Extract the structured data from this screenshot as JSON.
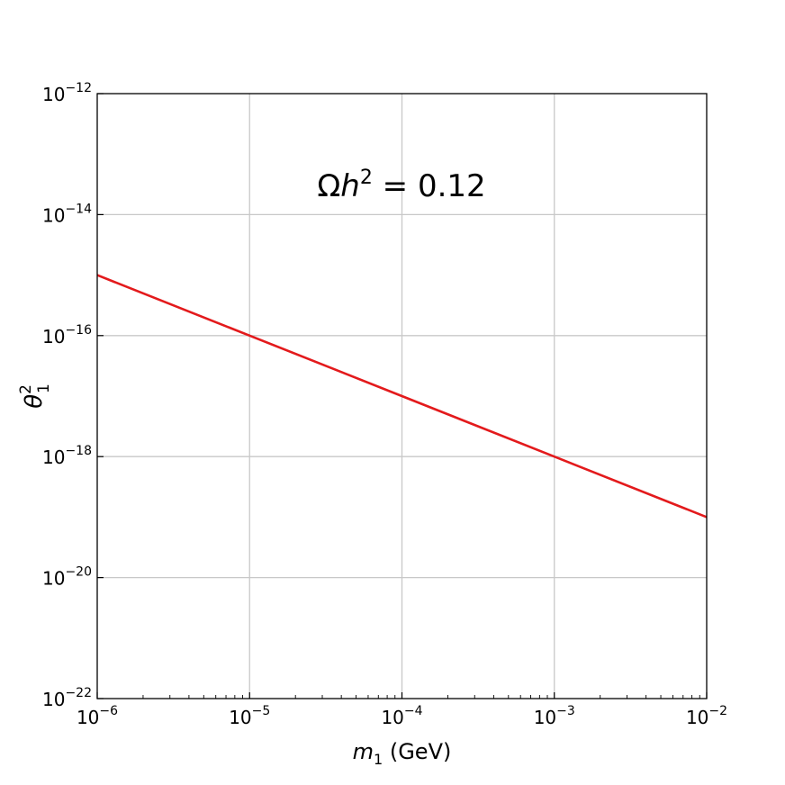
{
  "chart_data": {
    "type": "line",
    "xscale": "log",
    "yscale": "log",
    "xlim": [
      1e-06,
      0.01
    ],
    "ylim": [
      1e-22,
      1e-12
    ],
    "grid": true,
    "xlabel": {
      "base": "m",
      "subscript": "1",
      "unit": " (GeV)"
    },
    "ylabel": {
      "base": "θ",
      "subscript": "1",
      "superscript": "2"
    },
    "x_ticks": [
      {
        "base": "10",
        "exp": "−6"
      },
      {
        "base": "10",
        "exp": "−5"
      },
      {
        "base": "10",
        "exp": "−4"
      },
      {
        "base": "10",
        "exp": "−3"
      },
      {
        "base": "10",
        "exp": "−2"
      }
    ],
    "y_ticks": [
      {
        "base": "10",
        "exp": "−22"
      },
      {
        "base": "10",
        "exp": "−20"
      },
      {
        "base": "10",
        "exp": "−18"
      },
      {
        "base": "10",
        "exp": "−16"
      },
      {
        "base": "10",
        "exp": "−14"
      },
      {
        "base": "10",
        "exp": "−12"
      }
    ],
    "annotation": {
      "omega": "Ω",
      "h": "h",
      "sup": "2",
      "rest": " = 0.12"
    },
    "series": [
      {
        "color": "#e31a1c",
        "x": [
          1e-06,
          1e-05,
          0.0001,
          0.001,
          0.01
        ],
        "y": [
          1e-15,
          1e-16,
          1e-17,
          1e-18,
          1e-19
        ]
      }
    ]
  }
}
